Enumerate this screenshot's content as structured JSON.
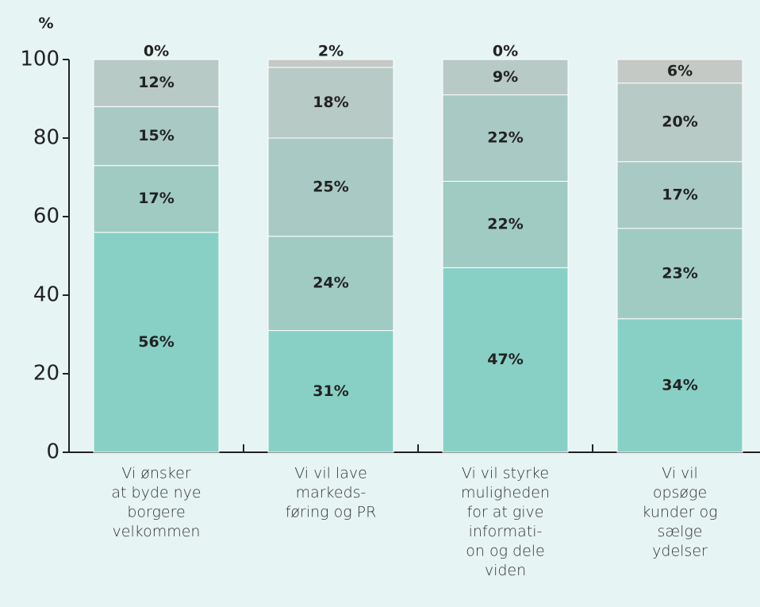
{
  "chart_data": {
    "type": "bar",
    "stacked": true,
    "y_label": "%",
    "categories": [
      [
        "Vi ønsker",
        "at byde nye",
        "borgere",
        "velkommen"
      ],
      [
        "Vi vil lave",
        "markeds-",
        "føring og PR"
      ],
      [
        "Vi vil styrke",
        "muligheden",
        "for at give",
        "informati-",
        "on og dele",
        "viden"
      ],
      [
        "Vi vil",
        "opsøge",
        "kunder og",
        "sælge",
        "ydelser"
      ]
    ],
    "series": [
      {
        "color": "#88d0c6",
        "values": [
          56,
          31,
          47,
          34
        ],
        "value_labels": [
          "56%",
          "31%",
          "47%",
          "34%"
        ]
      },
      {
        "color": "#9fcbc3",
        "values": [
          17,
          24,
          22,
          23
        ],
        "value_labels": [
          "17%",
          "24%",
          "22%",
          "23%"
        ]
      },
      {
        "color": "#a9cac4",
        "values": [
          15,
          25,
          22,
          17
        ],
        "value_labels": [
          "15%",
          "25%",
          "22%",
          "17%"
        ]
      },
      {
        "color": "#b8cac6",
        "values": [
          12,
          18,
          9,
          20
        ],
        "value_labels": [
          "12%",
          "18%",
          "9%",
          "20%"
        ]
      },
      {
        "color": "#c5c9c5",
        "values": [
          0,
          2,
          0,
          6
        ],
        "value_labels": [
          "0%",
          "2%",
          "0%",
          "6%"
        ]
      }
    ],
    "ylim": [
      0,
      100
    ],
    "yticks": [
      0,
      20,
      40,
      60,
      80,
      100
    ],
    "grid": false
  }
}
